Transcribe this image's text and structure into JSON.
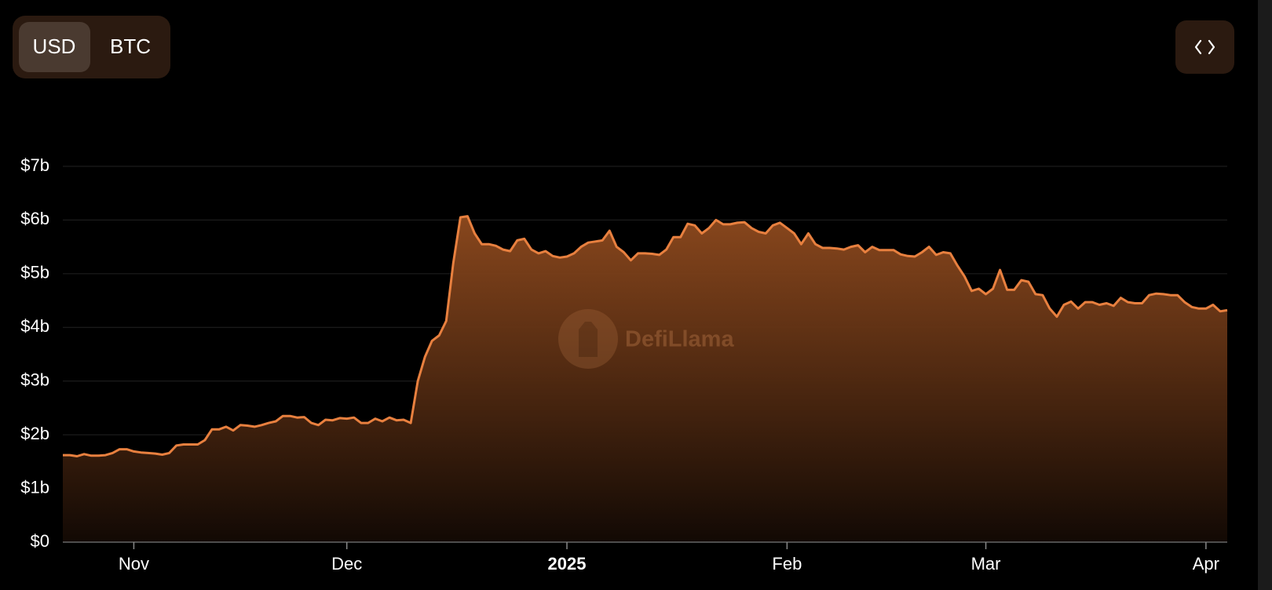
{
  "toggle": {
    "options": [
      "USD",
      "BTC"
    ],
    "selected": 0
  },
  "watermark": "DefiLlama",
  "chart_data": {
    "type": "area",
    "color": "#e8803f",
    "grid": true,
    "ylim": [
      0,
      7
    ],
    "yticks": [
      {
        "value": 0,
        "label": "$0"
      },
      {
        "value": 1,
        "label": "$1b"
      },
      {
        "value": 2,
        "label": "$2b"
      },
      {
        "value": 3,
        "label": "$3b"
      },
      {
        "value": 4,
        "label": "$4b"
      },
      {
        "value": 5,
        "label": "$5b"
      },
      {
        "value": 6,
        "label": "$6b"
      },
      {
        "value": 7,
        "label": "$7b"
      }
    ],
    "categories": [
      null,
      null,
      null,
      null,
      null,
      null,
      null,
      null,
      null,
      null,
      "Nov",
      null,
      null,
      null,
      null,
      null,
      null,
      null,
      null,
      null,
      null,
      null,
      null,
      null,
      null,
      null,
      null,
      null,
      null,
      null,
      null,
      null,
      null,
      null,
      null,
      null,
      null,
      null,
      null,
      null,
      "Dec",
      null,
      null,
      null,
      null,
      null,
      null,
      null,
      null,
      null,
      null,
      null,
      null,
      null,
      null,
      null,
      null,
      null,
      null,
      null,
      null,
      null,
      null,
      null,
      null,
      null,
      null,
      null,
      null,
      null,
      null,
      "2025",
      null,
      null,
      null,
      null,
      null,
      null,
      null,
      null,
      null,
      null,
      null,
      null,
      null,
      null,
      null,
      null,
      null,
      null,
      null,
      null,
      null,
      null,
      null,
      null,
      null,
      null,
      null,
      null,
      null,
      null,
      "Feb",
      null,
      null,
      null,
      null,
      null,
      null,
      null,
      null,
      null,
      null,
      null,
      null,
      null,
      null,
      null,
      null,
      null,
      null,
      null,
      null,
      null,
      null,
      null,
      null,
      null,
      null,
      null,
      "Mar",
      null,
      null,
      null,
      null,
      null,
      null,
      null,
      null,
      null,
      null,
      null,
      null,
      null,
      null,
      null,
      null,
      null,
      null,
      null,
      null,
      null,
      null,
      null,
      null,
      null,
      null,
      null,
      null,
      null,
      null,
      "Apr",
      null,
      null,
      null
    ],
    "values": [
      1.62,
      1.62,
      1.6,
      1.64,
      1.61,
      1.61,
      1.62,
      1.66,
      1.73,
      1.73,
      1.69,
      1.67,
      1.66,
      1.65,
      1.63,
      1.66,
      1.8,
      1.82,
      1.82,
      1.82,
      1.9,
      2.1,
      2.1,
      2.15,
      2.08,
      2.18,
      2.17,
      2.15,
      2.18,
      2.22,
      2.25,
      2.35,
      2.35,
      2.32,
      2.33,
      2.22,
      2.18,
      2.28,
      2.27,
      2.31,
      2.3,
      2.32,
      2.22,
      2.22,
      2.3,
      2.25,
      2.32,
      2.27,
      2.28,
      2.22,
      3.0,
      3.45,
      3.75,
      3.85,
      4.12,
      5.2,
      6.05,
      6.07,
      5.75,
      5.55,
      5.55,
      5.52,
      5.45,
      5.42,
      5.62,
      5.65,
      5.45,
      5.38,
      5.42,
      5.33,
      5.3,
      5.32,
      5.38,
      5.5,
      5.58,
      5.6,
      5.62,
      5.8,
      5.5,
      5.4,
      5.25,
      5.38,
      5.38,
      5.37,
      5.35,
      5.45,
      5.68,
      5.68,
      5.93,
      5.9,
      5.75,
      5.85,
      6.0,
      5.92,
      5.92,
      5.95,
      5.96,
      5.85,
      5.78,
      5.75,
      5.9,
      5.95,
      5.85,
      5.75,
      5.55,
      5.75,
      5.55,
      5.48,
      5.48,
      5.47,
      5.45,
      5.5,
      5.53,
      5.4,
      5.5,
      5.44,
      5.44,
      5.44,
      5.36,
      5.33,
      5.32,
      5.4,
      5.5,
      5.35,
      5.4,
      5.38,
      5.15,
      4.95,
      4.68,
      4.72,
      4.62,
      4.72,
      5.07,
      4.7,
      4.7,
      4.88,
      4.85,
      4.62,
      4.6,
      4.35,
      4.2,
      4.42,
      4.48,
      4.35,
      4.47,
      4.47,
      4.42,
      4.45,
      4.4,
      4.55,
      4.47,
      4.45,
      4.45,
      4.6,
      4.63,
      4.62,
      4.6,
      4.6,
      4.47,
      4.38,
      4.35,
      4.35,
      4.42,
      4.3,
      4.32
    ]
  }
}
